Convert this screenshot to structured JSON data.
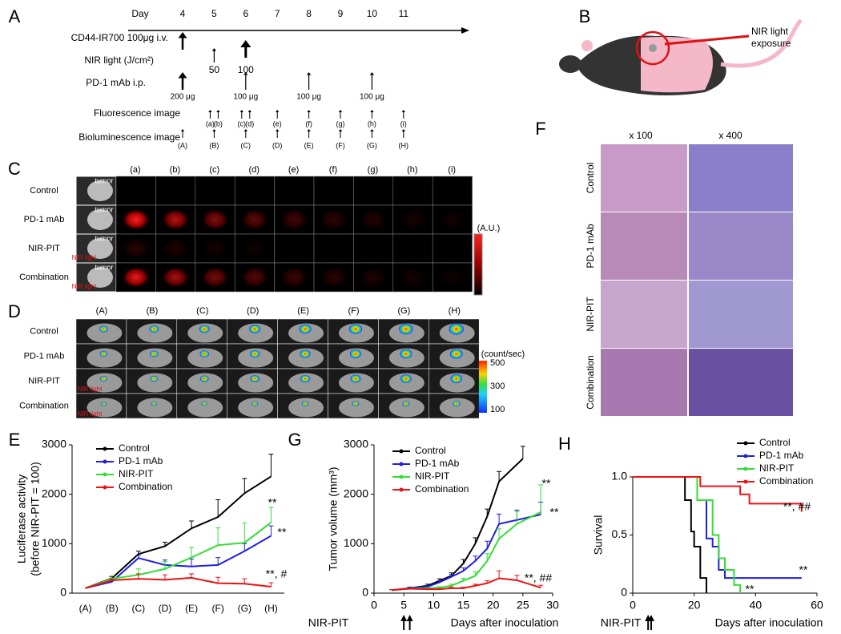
{
  "panel_labels": [
    "A",
    "B",
    "C",
    "D",
    "E",
    "F",
    "G",
    "H"
  ],
  "timeline": {
    "day_label": "Day",
    "days": [
      4,
      5,
      6,
      7,
      8,
      9,
      10,
      11
    ],
    "rows": [
      "CD44-IR700 100μg i.v.",
      "NIR light (J/cm²)",
      "PD-1 mAb i.p.",
      "Fluorescence  image",
      "Bioluminescence  image"
    ],
    "nir_doses": [
      "50",
      "100"
    ],
    "pd1_doses": [
      "200 μg",
      "100 μg",
      "100 μg",
      "100 μg"
    ],
    "fluorescence_labels": [
      "(a)",
      "(b)",
      "(c)",
      "(d)",
      "(e)",
      "(f)",
      "(g)",
      "(h)",
      "(i)"
    ],
    "bioluminescence_labels": [
      "(A)",
      "(B)",
      "(C)",
      "(D)",
      "(E)",
      "(F)",
      "(G)",
      "(H)"
    ]
  },
  "mouse": {
    "label": [
      "NIR light",
      "exposure"
    ]
  },
  "panel_c": {
    "columns": [
      "(a)",
      "(b)",
      "(c)",
      "(d)",
      "(e)",
      "(f)",
      "(g)",
      "(h)",
      "(i)"
    ],
    "rows": [
      "Control",
      "PD-1 mAb",
      "NIR-PIT",
      "Combination"
    ],
    "photo_labels": [
      "tumor",
      "NIR light"
    ],
    "colorbar_label": "(A.U.)"
  },
  "panel_d": {
    "columns": [
      "(A)",
      "(B)",
      "(C)",
      "(D)",
      "(E)",
      "(F)",
      "(G)",
      "(H)"
    ],
    "rows": [
      "Control",
      "PD-1 mAb",
      "NIR-PIT",
      "Combination"
    ],
    "photo_label": "NIR light",
    "colorbar_label": "(count/sec)",
    "colorbar_ticks": [
      "500",
      "300",
      "100"
    ]
  },
  "panel_f": {
    "columns": [
      "x 100",
      "x 400"
    ],
    "rows": [
      "Control",
      "PD-1 mAb",
      "NIR-PIT",
      "Combination"
    ]
  },
  "chart_data": [
    {
      "type": "line",
      "y_label": [
        "Luciferase activity",
        "(before NIR-PIT = 100)"
      ],
      "categories": [
        "(A)",
        "(B)",
        "(C)",
        "(D)",
        "(E)",
        "(F)",
        "(G)",
        "(H)"
      ],
      "ylim": [
        0,
        3000
      ],
      "yticks": [
        0,
        1000,
        2000,
        3000
      ],
      "legend": "upper left",
      "series": [
        {
          "name": "Control",
          "color": "#000000",
          "values": [
            100,
            300,
            790,
            950,
            1310,
            1540,
            2020,
            2360
          ],
          "errors": [
            0,
            30,
            60,
            80,
            150,
            350,
            300,
            450
          ]
        },
        {
          "name": "PD-1 mAb",
          "color": "#1f1fe0",
          "values": [
            100,
            230,
            710,
            570,
            540,
            570,
            850,
            1160
          ],
          "errors": [
            0,
            40,
            50,
            100,
            150,
            150,
            150,
            200
          ]
        },
        {
          "name": "NIR-PIT",
          "color": "#33dd33",
          "values": [
            100,
            290,
            370,
            490,
            720,
            970,
            1020,
            1430
          ],
          "errors": [
            0,
            60,
            120,
            150,
            200,
            350,
            400,
            300
          ]
        },
        {
          "name": "Combination",
          "color": "#ee1111",
          "values": [
            100,
            260,
            290,
            270,
            310,
            200,
            190,
            130
          ],
          "errors": [
            0,
            20,
            100,
            100,
            80,
            120,
            100,
            80
          ]
        }
      ],
      "annotations": [
        "**",
        "**",
        "**, #"
      ]
    },
    {
      "type": "line",
      "y_label": [
        "Tumor volume (mm³)"
      ],
      "x_label": "Days after inoculation",
      "treatment_label": "NIR-PIT",
      "treatment_days": [
        5,
        6
      ],
      "xlim": [
        0,
        30
      ],
      "xticks": [
        0,
        5,
        10,
        15,
        20,
        25,
        30
      ],
      "ylim": [
        0,
        3000
      ],
      "yticks": [
        0,
        1000,
        2000,
        3000
      ],
      "legend": "upper left",
      "series": [
        {
          "name": "Control",
          "color": "#000000",
          "x": [
            3,
            6,
            9,
            11,
            13,
            15,
            17,
            19,
            21,
            25
          ],
          "values": [
            60,
            100,
            150,
            250,
            350,
            600,
            1000,
            1550,
            2260,
            2720
          ],
          "errors": [
            10,
            20,
            30,
            40,
            60,
            80,
            120,
            150,
            200,
            250
          ]
        },
        {
          "name": "PD-1 mAb",
          "color": "#1f1fe0",
          "x": [
            3,
            6,
            9,
            11,
            13,
            15,
            17,
            19,
            21,
            24,
            28
          ],
          "values": [
            60,
            100,
            130,
            220,
            330,
            450,
            650,
            900,
            1400,
            1480,
            1590
          ],
          "errors": [
            10,
            10,
            20,
            30,
            50,
            60,
            100,
            150,
            200,
            200,
            250
          ]
        },
        {
          "name": "NIR-PIT",
          "color": "#33dd33",
          "x": [
            3,
            6,
            9,
            11,
            13,
            15,
            17,
            19,
            21,
            24,
            28
          ],
          "values": [
            60,
            90,
            100,
            110,
            150,
            250,
            350,
            650,
            1100,
            1400,
            1640
          ],
          "errors": [
            10,
            10,
            10,
            20,
            30,
            50,
            80,
            150,
            200,
            250,
            550
          ]
        },
        {
          "name": "Combination",
          "color": "#ee1111",
          "x": [
            3,
            6,
            9,
            11,
            13,
            15,
            17,
            19,
            21,
            24,
            28
          ],
          "values": [
            60,
            90,
            80,
            80,
            100,
            100,
            150,
            200,
            300,
            260,
            110
          ],
          "errors": [
            10,
            10,
            10,
            10,
            20,
            20,
            30,
            50,
            150,
            100,
            50
          ]
        }
      ],
      "annotations": [
        "**",
        "**",
        "**, ##"
      ]
    },
    {
      "type": "step",
      "y_label": [
        "Survival"
      ],
      "x_label": "Days after inoculation",
      "treatment_label": "NIR-PIT",
      "treatment_days": [
        5,
        6
      ],
      "xlim": [
        0,
        60
      ],
      "xticks": [
        0,
        20,
        40,
        60
      ],
      "ylim": [
        0,
        1
      ],
      "yticks": [
        0,
        0.5,
        {
          "value": 1,
          "label": "1.0"
        }
      ],
      "legend": "upper right",
      "series": [
        {
          "name": "Control",
          "color": "#000000",
          "x": [
            0,
            17,
            19,
            20,
            22,
            24
          ],
          "values": [
            1,
            0.8,
            0.53,
            0.4,
            0.13,
            0
          ]
        },
        {
          "name": "PD-1 mAb",
          "color": "#1f1fe0",
          "x": [
            0,
            21,
            24,
            26,
            28,
            30,
            33,
            55
          ],
          "values": [
            1,
            0.8,
            0.47,
            0.4,
            0.2,
            0.13,
            0.13,
            0.13
          ]
        },
        {
          "name": "NIR-PIT",
          "color": "#33dd33",
          "x": [
            0,
            21,
            26,
            28,
            30,
            33,
            35
          ],
          "values": [
            1,
            0.8,
            0.5,
            0.3,
            0.2,
            0.07,
            0
          ]
        },
        {
          "name": "Combination",
          "color": "#ee1111",
          "x": [
            0,
            22,
            35,
            38,
            55
          ],
          "values": [
            1,
            0.92,
            0.85,
            0.77,
            0.7
          ]
        }
      ],
      "annotations": [
        "**, ##",
        "**",
        "**"
      ]
    }
  ]
}
